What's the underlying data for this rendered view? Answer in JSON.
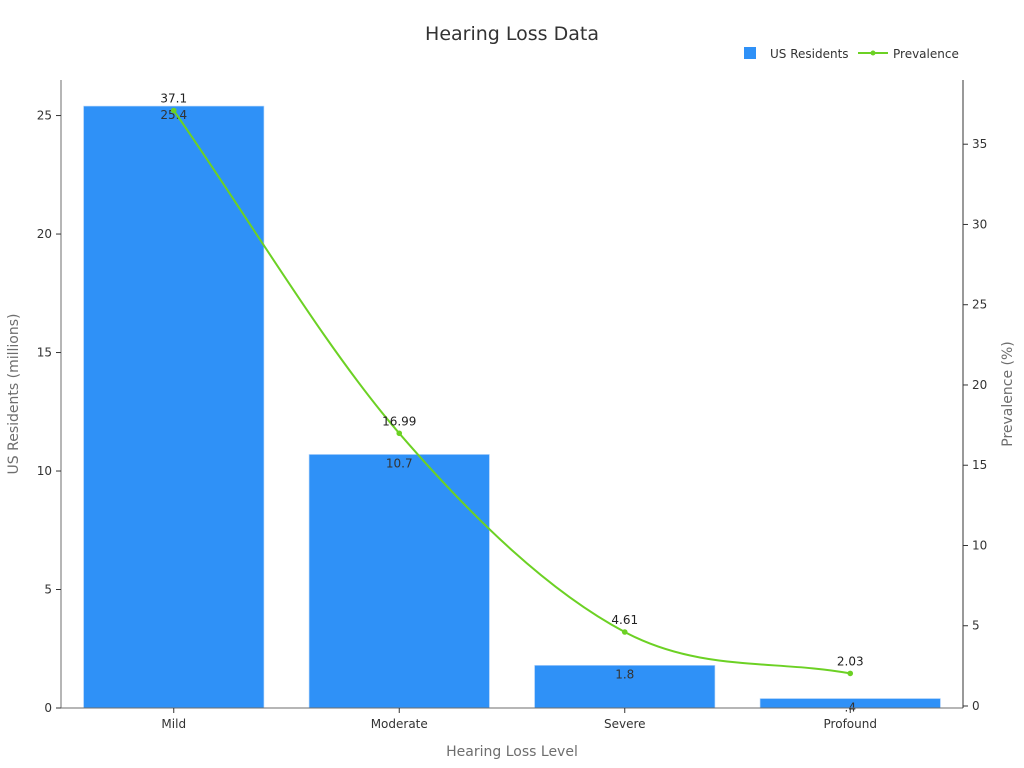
{
  "chart_data": {
    "type": "bar+line",
    "title": "Hearing Loss Data",
    "xlabel": "Hearing Loss Level",
    "categories": [
      "Mild",
      "Moderate",
      "Severe",
      "Profound"
    ],
    "series": [
      {
        "name": "US Residents",
        "type": "bar",
        "axis": "left",
        "values": [
          25.4,
          10.7,
          1.8,
          0.4
        ],
        "labels": [
          "25.4",
          "10.7",
          "1.8",
          ".4"
        ]
      },
      {
        "name": "Prevalence",
        "type": "line",
        "smooth": true,
        "axis": "right",
        "values": [
          37.1,
          16.99,
          4.61,
          2.03
        ],
        "labels": [
          "37.1",
          "16.99",
          "4.61",
          "2.03"
        ]
      }
    ],
    "ylabel": "US Residents (millions)",
    "ylim": [
      0,
      26.5
    ],
    "yticks": [
      0,
      5,
      10,
      15,
      20,
      25
    ],
    "y2label": "Prevalence (%)",
    "y2lim": [
      0,
      39
    ],
    "y2ticks": [
      0,
      5,
      10,
      15,
      20,
      25,
      30,
      35
    ],
    "legend": "top-right",
    "colors": {
      "bar": "#2f91f7",
      "line": "#6cd124"
    }
  }
}
